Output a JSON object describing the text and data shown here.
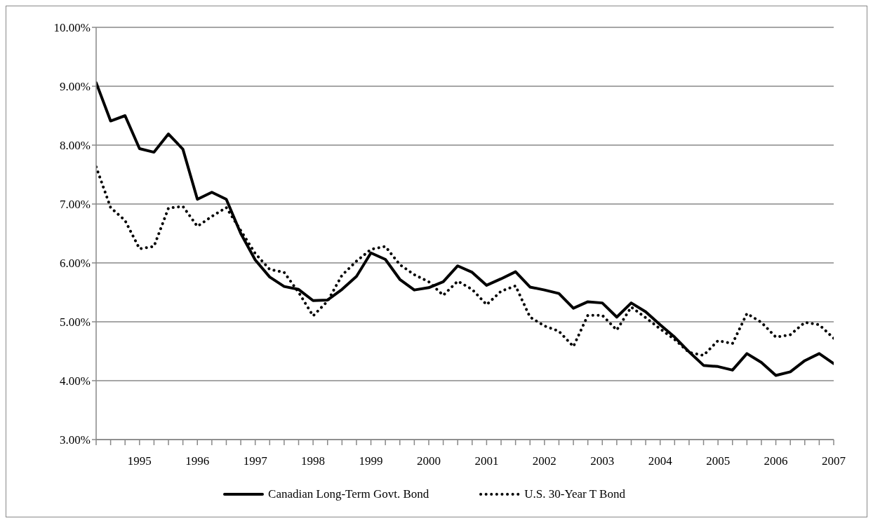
{
  "chart_data": {
    "type": "line",
    "x": [
      1994.25,
      1994.5,
      1994.75,
      1995,
      1995.25,
      1995.5,
      1995.75,
      1996,
      1996.25,
      1996.5,
      1996.75,
      1997,
      1997.25,
      1997.5,
      1997.75,
      1998,
      1998.25,
      1998.5,
      1998.75,
      1999,
      1999.25,
      1999.5,
      1999.75,
      2000,
      2000.25,
      2000.5,
      2000.75,
      2001,
      2001.25,
      2001.5,
      2001.75,
      2002,
      2002.25,
      2002.5,
      2002.75,
      2003,
      2003.25,
      2003.5,
      2003.75,
      2004,
      2004.25,
      2004.5,
      2004.75,
      2005,
      2005.25,
      2005.5,
      2005.75,
      2006,
      2006.25,
      2006.5,
      2006.75,
      2007
    ],
    "series": [
      {
        "name": "Canadian Long-Term Govt. Bond",
        "color": "#000000",
        "line_style": "solid",
        "values": [
          9.06,
          8.41,
          8.5,
          7.94,
          7.88,
          8.19,
          7.93,
          7.08,
          7.2,
          7.08,
          6.5,
          6.05,
          5.76,
          5.6,
          5.55,
          5.36,
          5.37,
          5.55,
          5.77,
          6.17,
          6.06,
          5.72,
          5.54,
          5.58,
          5.68,
          5.95,
          5.84,
          5.62,
          5.73,
          5.85,
          5.59,
          5.54,
          5.48,
          5.23,
          5.34,
          5.32,
          5.08,
          5.32,
          5.17,
          4.95,
          4.74,
          4.49,
          4.26,
          4.24,
          4.18,
          4.46,
          4.31,
          4.09,
          4.15,
          4.34,
          4.46,
          4.29
        ]
      },
      {
        "name": "U.S. 30-Year T Bond",
        "color": "#000000",
        "line_style": "dotted",
        "values": [
          7.63,
          6.94,
          6.72,
          6.24,
          6.28,
          6.93,
          6.96,
          6.62,
          6.79,
          6.94,
          6.55,
          6.16,
          5.89,
          5.84,
          5.5,
          5.1,
          5.35,
          5.79,
          6.03,
          6.23,
          6.28,
          5.97,
          5.8,
          5.68,
          5.45,
          5.69,
          5.55,
          5.29,
          5.52,
          5.61,
          5.08,
          4.93,
          4.84,
          4.58,
          5.11,
          5.11,
          4.86,
          5.25,
          5.07,
          4.88,
          4.7,
          4.48,
          4.43,
          4.68,
          4.63,
          5.14,
          4.99,
          4.74,
          4.78,
          4.99,
          4.95,
          4.72
        ]
      }
    ],
    "xlim": [
      1994.25,
      2007
    ],
    "xticks": [
      {
        "value": 1994.25,
        "label": null
      },
      {
        "value": 1994.5,
        "label": null
      },
      {
        "value": 1994.75,
        "label": null
      },
      1995,
      {
        "value": 1995.25,
        "label": null
      },
      {
        "value": 1995.5,
        "label": null
      },
      {
        "value": 1995.75,
        "label": null
      },
      1996,
      {
        "value": 1996.25,
        "label": null
      },
      {
        "value": 1996.5,
        "label": null
      },
      {
        "value": 1996.75,
        "label": null
      },
      1997,
      {
        "value": 1997.25,
        "label": null
      },
      {
        "value": 1997.5,
        "label": null
      },
      {
        "value": 1997.75,
        "label": null
      },
      1998,
      {
        "value": 1998.25,
        "label": null
      },
      {
        "value": 1998.5,
        "label": null
      },
      {
        "value": 1998.75,
        "label": null
      },
      1999,
      {
        "value": 1999.25,
        "label": null
      },
      {
        "value": 1999.5,
        "label": null
      },
      {
        "value": 1999.75,
        "label": null
      },
      2000,
      {
        "value": 2000.25,
        "label": null
      },
      {
        "value": 2000.5,
        "label": null
      },
      {
        "value": 2000.75,
        "label": null
      },
      2001,
      {
        "value": 2001.25,
        "label": null
      },
      {
        "value": 2001.5,
        "label": null
      },
      {
        "value": 2001.75,
        "label": null
      },
      2002,
      {
        "value": 2002.25,
        "label": null
      },
      {
        "value": 2002.5,
        "label": null
      },
      {
        "value": 2002.75,
        "label": null
      },
      2003,
      {
        "value": 2003.25,
        "label": null
      },
      {
        "value": 2003.5,
        "label": null
      },
      {
        "value": 2003.75,
        "label": null
      },
      2004,
      {
        "value": 2004.25,
        "label": null
      },
      {
        "value": 2004.5,
        "label": null
      },
      {
        "value": 2004.75,
        "label": null
      },
      2005,
      {
        "value": 2005.25,
        "label": null
      },
      {
        "value": 2005.5,
        "label": null
      },
      {
        "value": 2005.75,
        "label": null
      },
      2006,
      {
        "value": 2006.25,
        "label": null
      },
      {
        "value": 2006.5,
        "label": null
      },
      {
        "value": 2006.75,
        "label": null
      },
      2007
    ],
    "ylim": [
      3,
      10
    ],
    "yticks": [
      {
        "value": 3,
        "label": "3.00%"
      },
      {
        "value": 4,
        "label": "4.00%"
      },
      {
        "value": 5,
        "label": "5.00%"
      },
      {
        "value": 6,
        "label": "6.00%"
      },
      {
        "value": 7,
        "label": "7.00%"
      },
      {
        "value": 8,
        "label": "8.00%"
      },
      {
        "value": 9,
        "label": "9.00%"
      },
      {
        "value": 10,
        "label": "10.00%"
      }
    ],
    "grid": "y",
    "legend": "bottom",
    "marker": "none"
  }
}
